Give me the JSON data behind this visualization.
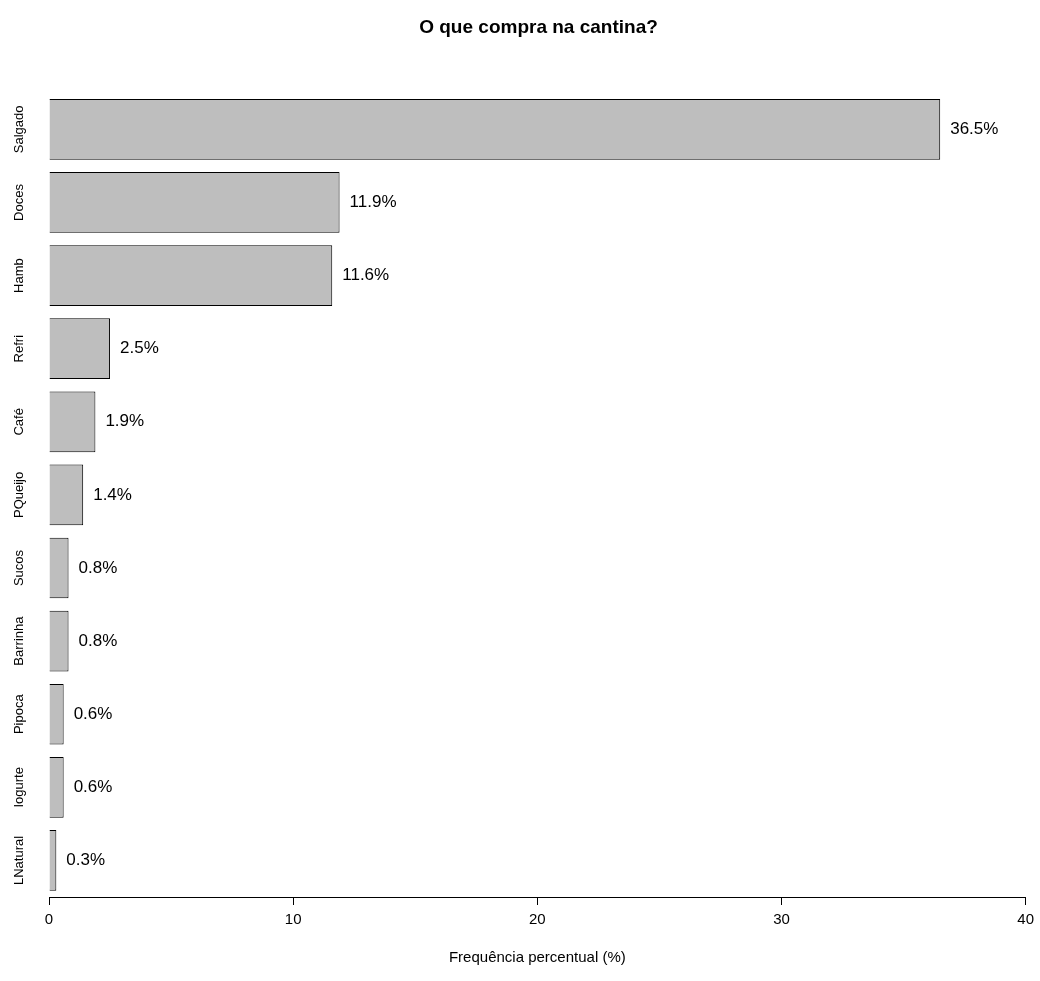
{
  "chart_data": {
    "type": "bar",
    "orientation": "horizontal",
    "title": "O que compra na cantina?",
    "xlabel": "Frequência percentual (%)",
    "categories": [
      "Salgado",
      "Doces",
      "Hamb",
      "Refri",
      "Café",
      "PQueijo",
      "Sucos",
      "Barrinha",
      "Pipoca",
      "Iogurte",
      "LNatural"
    ],
    "values": [
      36.5,
      11.9,
      11.6,
      2.5,
      1.9,
      1.4,
      0.8,
      0.8,
      0.6,
      0.6,
      0.3
    ],
    "value_labels": [
      "36.5%",
      "11.9%",
      "11.6%",
      "2.5%",
      "1.9%",
      "1.4%",
      "0.8%",
      "0.8%",
      "0.6%",
      "0.6%",
      "0.3%"
    ],
    "color": "#bebebe",
    "xlim": [
      0,
      40
    ],
    "xticks": [
      0,
      10,
      20,
      30,
      40
    ],
    "grid": false,
    "legend": false
  }
}
